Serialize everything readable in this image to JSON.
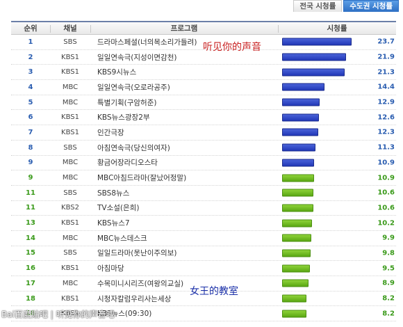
{
  "tabs": [
    {
      "label": "전국 시청률"
    },
    {
      "label": "수도권 시청률"
    }
  ],
  "header": {
    "rank": "순위",
    "channel": "채널",
    "program": "프로그램",
    "rating": "시청률"
  },
  "rows": [
    {
      "rank": "1",
      "channel": "SBS",
      "program": "드라마스페셜(너의목소리가들려)",
      "rating": "23.7",
      "color": "blue"
    },
    {
      "rank": "2",
      "channel": "KBS1",
      "program": "일일연속극(지성이면감천)",
      "rating": "21.9",
      "color": "blue"
    },
    {
      "rank": "3",
      "channel": "KBS1",
      "program": "KBS9시뉴스",
      "rating": "21.3",
      "color": "blue"
    },
    {
      "rank": "4",
      "channel": "MBC",
      "program": "일일연속극(오로라공주)",
      "rating": "14.4",
      "color": "blue"
    },
    {
      "rank": "5",
      "channel": "MBC",
      "program": "특별기획(구암허준)",
      "rating": "12.9",
      "color": "blue"
    },
    {
      "rank": "6",
      "channel": "KBS1",
      "program": "KBS뉴스광장2부",
      "rating": "12.6",
      "color": "blue"
    },
    {
      "rank": "7",
      "channel": "KBS1",
      "program": "인간극장",
      "rating": "12.3",
      "color": "blue"
    },
    {
      "rank": "8",
      "channel": "SBS",
      "program": "아침연속극(당신의여자)",
      "rating": "11.3",
      "color": "blue"
    },
    {
      "rank": "9",
      "channel": "MBC",
      "program": "황금어장라디오스타",
      "rating": "10.9",
      "color": "blue"
    },
    {
      "rank": "9",
      "channel": "MBC",
      "program": "MBC아침드라마(잘났어정말)",
      "rating": "10.9",
      "color": "green"
    },
    {
      "rank": "11",
      "channel": "SBS",
      "program": "SBS8뉴스",
      "rating": "10.6",
      "color": "green"
    },
    {
      "rank": "11",
      "channel": "KBS2",
      "program": "TV소설(은희)",
      "rating": "10.6",
      "color": "green"
    },
    {
      "rank": "13",
      "channel": "KBS1",
      "program": "KBS뉴스7",
      "rating": "10.2",
      "color": "green"
    },
    {
      "rank": "14",
      "channel": "MBC",
      "program": "MBC뉴스데스크",
      "rating": "9.9",
      "color": "green"
    },
    {
      "rank": "15",
      "channel": "SBS",
      "program": "일일드라마(못난이주의보)",
      "rating": "9.8",
      "color": "green"
    },
    {
      "rank": "16",
      "channel": "KBS1",
      "program": "아침마당",
      "rating": "9.5",
      "color": "green"
    },
    {
      "rank": "17",
      "channel": "MBC",
      "program": "수목미니시리즈(여왕의교실)",
      "rating": "8.9",
      "color": "green"
    },
    {
      "rank": "18",
      "channel": "KBS1",
      "program": "시청자칼럼우리사는세상",
      "rating": "8.2",
      "color": "green"
    },
    {
      "rank": "18",
      "channel": "KBS1",
      "program": "KBS뉴스(09:30)",
      "rating": "8.2",
      "color": "green"
    }
  ],
  "annotations": {
    "red": "听见你的声音",
    "blue": "女王的教室"
  },
  "watermark": "Bai百度贴吧 | 听见你的声音吧"
}
